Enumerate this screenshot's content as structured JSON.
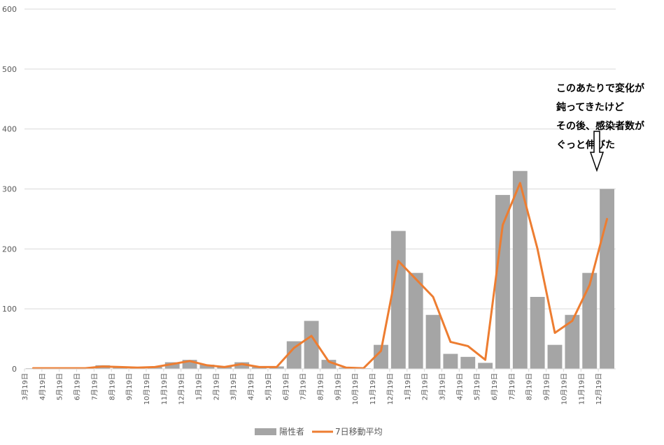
{
  "chart_data": {
    "type": "bar",
    "title": "",
    "xlabel": "",
    "ylabel": "",
    "ylim": [
      0,
      600
    ],
    "y_ticks": [
      0,
      100,
      200,
      300,
      400,
      500,
      600
    ],
    "grid": "horizontal",
    "legend_position": "bottom",
    "x_ticks": [
      "3月19日",
      "4月19日",
      "5月19日",
      "6月19日",
      "7月19日",
      "8月19日",
      "9月19日",
      "10月19日",
      "11月19日",
      "12月19日",
      "1月19日",
      "2月19日",
      "3月19日",
      "4月19日",
      "5月19日",
      "6月19日",
      "7月19日",
      "8月19日",
      "9月19日",
      "10月19日",
      "11月19日",
      "12月19日",
      "1月19日",
      "2月19日",
      "3月19日",
      "4月19日",
      "5月19日",
      "6月19日",
      "7月19日",
      "8月19日",
      "9月19日",
      "10月19日",
      "11月19日",
      "12月19日"
    ],
    "categories": [
      "3月19日",
      "4月19日",
      "5月19日",
      "6月19日",
      "7月19日",
      "8月19日",
      "9月19日",
      "10月19日",
      "11月19日",
      "12月19日",
      "1月19日",
      "2月19日",
      "3月19日",
      "4月19日",
      "5月19日",
      "6月19日",
      "7月19日",
      "8月19日",
      "9月19日",
      "10月19日",
      "11月19日",
      "12月19日",
      "1月19日",
      "2月19日",
      "3月19日",
      "4月19日",
      "5月19日",
      "6月19日",
      "7月19日",
      "8月19日",
      "9月19日",
      "10月19日",
      "11月19日",
      "12月19日"
    ],
    "series": [
      {
        "name": "陽性者",
        "type": "bar",
        "color": "#a5a5a5",
        "values": [
          1,
          1,
          1,
          2,
          6,
          3,
          2,
          3,
          11,
          15,
          7,
          4,
          11,
          3,
          4,
          46,
          80,
          15,
          2,
          1,
          40,
          230,
          160,
          90,
          25,
          20,
          10,
          290,
          330,
          120,
          40,
          90,
          160,
          300
        ]
      },
      {
        "name": "7日移動平均",
        "type": "line",
        "color": "#ed7d31",
        "values": [
          1,
          1,
          1,
          1,
          4,
          3,
          2,
          3,
          8,
          13,
          6,
          3,
          8,
          3,
          3,
          35,
          55,
          12,
          2,
          1,
          30,
          180,
          150,
          120,
          45,
          38,
          15,
          240,
          310,
          200,
          60,
          80,
          140,
          250
        ]
      }
    ],
    "annotations": [
      {
        "lines": [
          "このあたりで変化が",
          "鈍ってきたけど",
          "その後、感染者数が",
          "ぐっと伸びた"
        ],
        "arrow": "down"
      }
    ]
  }
}
